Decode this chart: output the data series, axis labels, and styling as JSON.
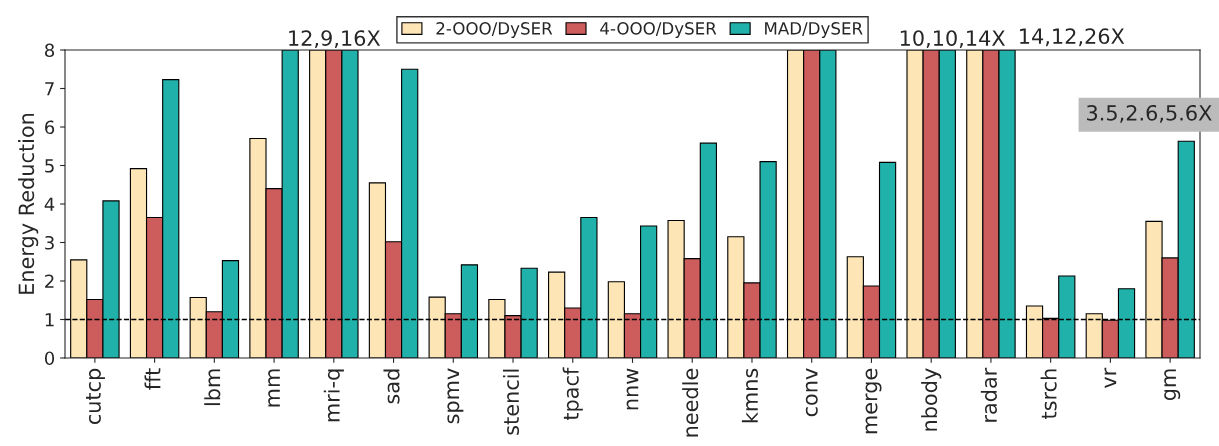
{
  "chart_data": {
    "type": "bar",
    "ylabel": "Energy Reduction",
    "categories": [
      "cutcp",
      "fft",
      "lbm",
      "mm",
      "mri-q",
      "sad",
      "spmv",
      "stencil",
      "tpacf",
      "nnw",
      "needle",
      "kmns",
      "conv",
      "merge",
      "nbody",
      "radar",
      "tsrch",
      "vr",
      "gm"
    ],
    "series": [
      {
        "name": "2-OOO/DySER",
        "color": "#fde5b5",
        "values": [
          2.55,
          4.92,
          1.57,
          5.7,
          8,
          4.55,
          1.58,
          1.52,
          2.23,
          1.98,
          3.57,
          3.15,
          8,
          2.63,
          8,
          8,
          1.35,
          1.15,
          3.55
        ]
      },
      {
        "name": "4-OOO/DySER",
        "color": "#cd5c5c",
        "values": [
          1.52,
          3.65,
          1.2,
          4.4,
          8,
          3.02,
          1.15,
          1.1,
          1.3,
          1.15,
          2.58,
          1.95,
          8,
          1.87,
          8,
          8,
          1.03,
          0.98,
          2.6
        ]
      },
      {
        "name": "MAD/DySER",
        "color": "#20b2aa",
        "values": [
          4.08,
          7.23,
          2.53,
          8,
          8,
          7.5,
          2.42,
          2.33,
          3.65,
          3.43,
          5.58,
          5.1,
          8,
          5.08,
          8,
          8,
          2.13,
          1.8,
          5.63
        ]
      }
    ],
    "ylim": [
      0,
      8
    ],
    "yticks": [
      0,
      1,
      2,
      3,
      4,
      5,
      6,
      7,
      8
    ],
    "grid": false,
    "legend": "top",
    "ref_lines": [
      {
        "axis": "y",
        "value": 1,
        "color": "#000000",
        "line_style": "dashed"
      }
    ],
    "annotations": [
      {
        "text": "12,9,16X",
        "x": "mri-q",
        "y": 8
      },
      {
        "text": "10,10,14X",
        "x": "nbody",
        "y": 8
      },
      {
        "text": "14,12,26X",
        "x": "radar",
        "y": 8
      },
      "3.5,2.6,5.6X"
    ]
  }
}
